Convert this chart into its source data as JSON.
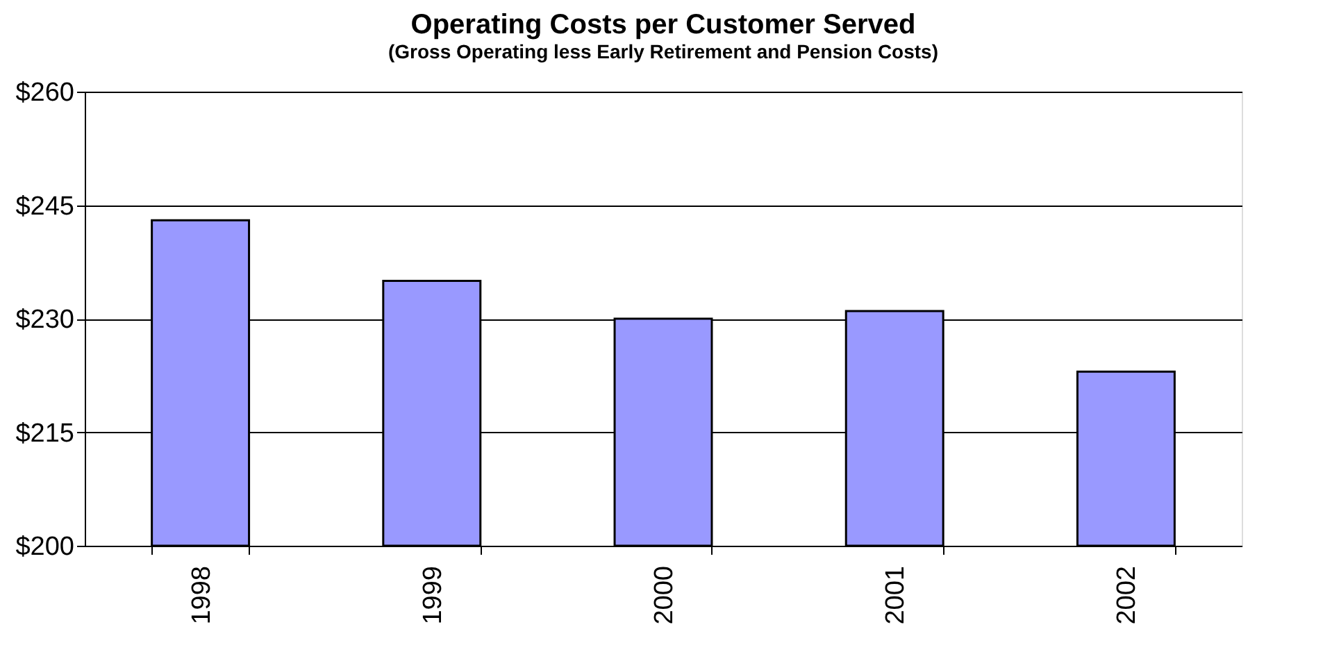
{
  "chart_data": {
    "type": "bar",
    "title": "Operating Costs per Customer Served",
    "subtitle": "(Gross Operating less Early Retirement and Pension Costs)",
    "categories": [
      "1998",
      "1999",
      "2000",
      "2001",
      "2002"
    ],
    "values": [
      243,
      235,
      230,
      231,
      223
    ],
    "color": "#9999ff",
    "ylim": [
      200,
      260
    ],
    "yticks": [
      {
        "value": 200,
        "label": "$200"
      },
      {
        "value": 215,
        "label": "$215"
      },
      {
        "value": 230,
        "label": "$230"
      },
      {
        "value": 245,
        "label": "$245"
      },
      {
        "value": 260,
        "label": "$260"
      }
    ],
    "grid": "y"
  }
}
